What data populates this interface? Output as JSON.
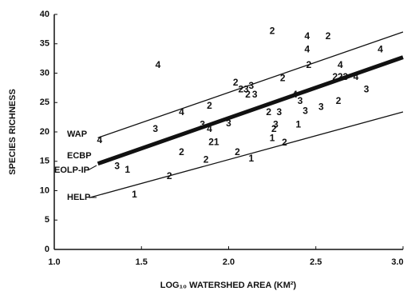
{
  "chart_data": {
    "type": "scatter",
    "x_label": "LOG₁₀ WATERSHED AREA (KM²)",
    "y_label": "SPECIES RICHNESS",
    "xlim": [
      1.0,
      3.0
    ],
    "xticks": [
      {
        "value": 1.0,
        "label": "1.0"
      },
      {
        "value": 1.5,
        "label": "1.5"
      },
      {
        "value": 2.0,
        "label": "2.0"
      },
      {
        "value": 2.5,
        "label": "2.5"
      },
      {
        "value": 3.0,
        "label": "3.0"
      }
    ],
    "ylim": [
      0,
      40
    ],
    "yticks": [
      0,
      5,
      10,
      15,
      20,
      25,
      30,
      35,
      40
    ],
    "color": "#111111",
    "points": {
      "x": [
        1.595,
        1.26,
        1.36,
        1.42,
        1.46,
        1.66,
        1.73,
        1.58,
        1.73,
        1.89,
        1.85,
        1.89,
        2.0,
        1.9,
        1.93,
        1.87,
        2.05,
        2.13,
        2.04,
        2.07,
        2.1,
        2.13,
        2.11,
        2.15,
        2.25,
        2.31,
        2.23,
        2.29,
        2.27,
        2.26,
        2.32,
        2.25,
        2.45,
        2.45,
        2.57,
        2.46,
        2.38,
        2.41,
        2.44,
        2.4,
        2.53,
        2.64,
        2.61,
        2.64,
        2.67,
        2.63,
        2.73,
        2.79,
        2.87
      ],
      "values": [
        31.3,
        18.5,
        14.1,
        13.5,
        9.3,
        12.4,
        16.5,
        20.4,
        23.3,
        24.4,
        21.2,
        20.4,
        21.4,
        18.2,
        18.2,
        15.2,
        16.5,
        15.4,
        28.3,
        27.2,
        27.2,
        27.8,
        26.3,
        26.3,
        37.1,
        29.1,
        23.3,
        23.3,
        21.2,
        20.4,
        18.1,
        18.9,
        36.2,
        34.0,
        36.2,
        31.3,
        26.3,
        25.2,
        23.5,
        21.2,
        24.2,
        31.3,
        29.3,
        29.3,
        29.3,
        25.2,
        29.3,
        27.2,
        34.0
      ],
      "labels": [
        "4",
        "4",
        "3",
        "1",
        "1",
        "2",
        "2",
        "3",
        "4",
        "2",
        "3",
        "4",
        "3",
        "2",
        "1",
        "2",
        "2",
        "1",
        "2",
        "2",
        "3",
        "3",
        "2",
        "3",
        "2",
        "2",
        "2",
        "3",
        "3",
        "2",
        "2",
        "1",
        "4",
        "4",
        "2",
        "2",
        "4",
        "3",
        "3",
        "1",
        "3",
        "4",
        "2",
        "2",
        "3",
        "2",
        "4",
        "3",
        "4"
      ]
    },
    "lines": [
      {
        "x": [
          1.25,
          3.0
        ],
        "values": [
          19.0,
          37.0
        ],
        "width": 1.3
      },
      {
        "x": [
          1.25,
          3.0
        ],
        "values": [
          14.6,
          32.7
        ],
        "width": 5
      },
      {
        "x": [
          1.2,
          3.0
        ],
        "values": [
          8.8,
          23.4
        ],
        "width": 1.3
      }
    ],
    "line_labels": [
      "WAP",
      "ECBP",
      "EOLP-IP",
      "HELP"
    ]
  }
}
